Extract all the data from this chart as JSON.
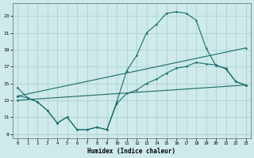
{
  "xlabel": "Humidex (Indice chaleur)",
  "xlim": [
    -0.5,
    23.5
  ],
  "ylim": [
    8.5,
    24.5
  ],
  "yticks": [
    9,
    11,
    13,
    15,
    17,
    19,
    21,
    23
  ],
  "xticks": [
    0,
    1,
    2,
    3,
    4,
    5,
    6,
    7,
    8,
    9,
    10,
    11,
    12,
    13,
    14,
    15,
    16,
    17,
    18,
    19,
    20,
    21,
    22,
    23
  ],
  "background_color": "#ceeaea",
  "grid_color": "#aed0d0",
  "line_color": "#1a6b6b",
  "curve1_x": [
    0,
    1,
    2,
    3,
    4,
    5,
    6,
    7,
    8,
    9,
    10,
    11,
    12,
    13,
    14,
    15,
    16,
    17,
    18,
    19,
    20,
    21,
    22,
    23
  ],
  "curve1_y": [
    14.5,
    13.3,
    12.8,
    11.8,
    10.3,
    11.0,
    9.5,
    9.5,
    9.8,
    9.5,
    12.8,
    16.5,
    18.3,
    21.0,
    22.0,
    23.3,
    23.5,
    23.3,
    22.5,
    19.2,
    17.1,
    16.8,
    15.2,
    14.8
  ],
  "curve2_x": [
    0,
    1,
    2,
    3,
    4,
    5,
    6,
    7,
    8,
    9,
    10,
    11,
    12,
    13,
    14,
    15,
    16,
    17,
    18,
    19,
    20,
    21,
    22,
    23
  ],
  "curve2_y": [
    13.5,
    13.3,
    12.8,
    11.8,
    10.3,
    11.0,
    9.5,
    9.5,
    9.8,
    9.5,
    12.6,
    13.8,
    14.2,
    15.0,
    15.5,
    16.2,
    16.8,
    17.0,
    17.5,
    17.3,
    17.2,
    16.7,
    15.2,
    14.8
  ],
  "line3_x": [
    0,
    23
  ],
  "line3_y": [
    13.5,
    19.2
  ],
  "line4_x": [
    0,
    23
  ],
  "line4_y": [
    13.0,
    14.8
  ]
}
